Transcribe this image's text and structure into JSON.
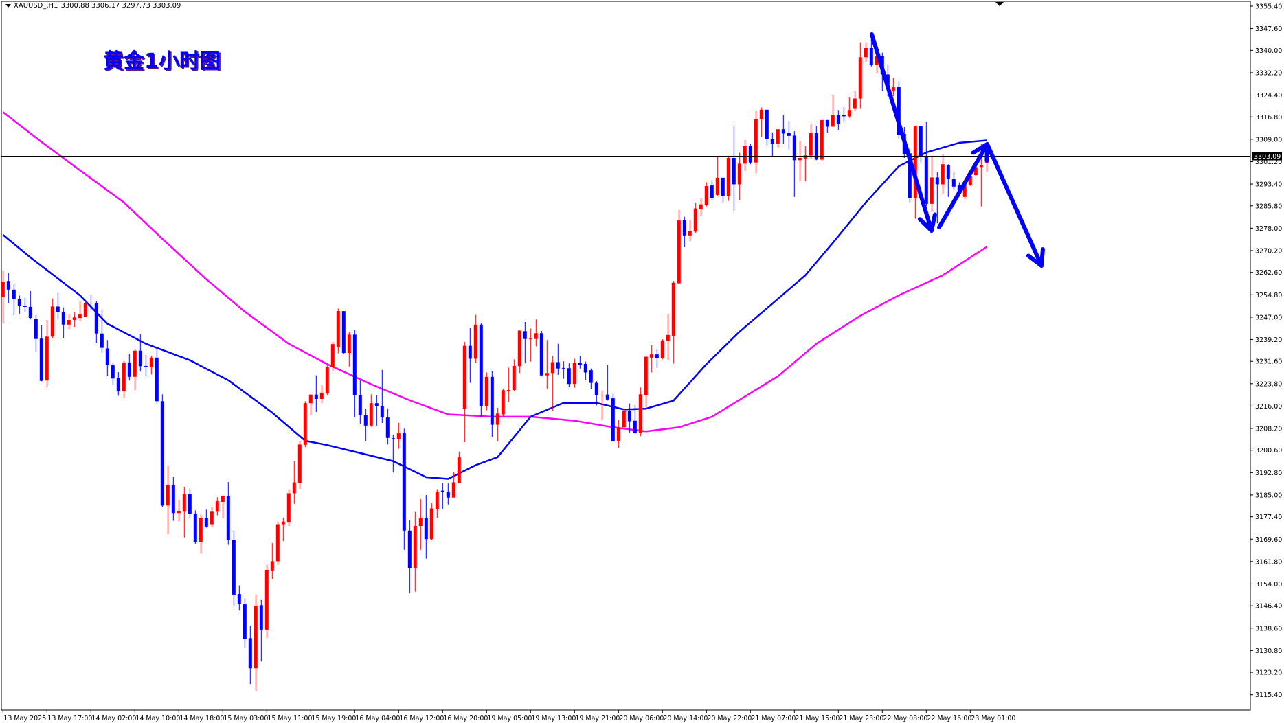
{
  "header": {
    "symbol": "XAUUSD_,H1",
    "ohlc": "3300.88 3306.17 3297.73 3303.09"
  },
  "annotation_title": "黄金1小时图",
  "colors": {
    "bull": "#ff0000",
    "bear": "#0000ff",
    "ma_fast": "#0000ff",
    "ma_slow": "#ff00ff",
    "arrows": "#0000ff"
  },
  "chart_data": {
    "type": "candlestick",
    "title": "黄金1小时图",
    "symbol": "XAUUSD_",
    "timeframe": "H1",
    "current_price": "3303.09",
    "ylim": [
      3115.4,
      3355.4
    ],
    "price_ticks": [
      "3355.40",
      "3347.60",
      "3340.00",
      "3332.20",
      "3324.40",
      "3316.80",
      "3309.00",
      "3301.20",
      "3293.40",
      "3285.80",
      "3278.00",
      "3270.20",
      "3262.60",
      "3254.80",
      "3247.00",
      "3239.20",
      "3231.60",
      "3223.80",
      "3216.00",
      "3208.20",
      "3200.60",
      "3192.80",
      "3185.00",
      "3177.40",
      "3169.60",
      "3161.80",
      "3154.00",
      "3146.40",
      "3138.60",
      "3130.80",
      "3123.20",
      "3115.40"
    ],
    "time_labels": [
      "13 May 2025",
      "13 May 17:00",
      "14 May 02:00",
      "14 May 10:00",
      "14 May 18:00",
      "15 May 03:00",
      "15 May 11:00",
      "15 May 19:00",
      "16 May 04:00",
      "16 May 12:00",
      "16 May 20:00",
      "19 May 05:00",
      "19 May 13:00",
      "19 May 21:00",
      "20 May 06:00",
      "20 May 14:00",
      "20 May 22:00",
      "21 May 07:00",
      "21 May 15:00",
      "21 May 23:00",
      "22 May 08:00",
      "22 May 16:00",
      "23 May 01:00"
    ],
    "bars_per_time_label": 8,
    "candles_ohlc": [
      [
        3254.0,
        3263.2,
        3244.8,
        3259.3
      ],
      [
        3259.6,
        3262.4,
        3251.9,
        3256.6
      ],
      [
        3256.6,
        3258.7,
        3247.7,
        3253.2
      ],
      [
        3253.3,
        3254.5,
        3248.2,
        3250.8
      ],
      [
        3250.8,
        3253.8,
        3248.7,
        3250.6
      ],
      [
        3250.6,
        3256.1,
        3246.2,
        3246.7
      ],
      [
        3246.5,
        3247.7,
        3234.9,
        3239.4
      ],
      [
        3239.5,
        3244.3,
        3224.6,
        3224.8
      ],
      [
        3224.9,
        3246.0,
        3222.8,
        3240.2
      ],
      [
        3240.2,
        3253.5,
        3239.5,
        3250.7
      ],
      [
        3250.7,
        3255.4,
        3246.2,
        3248.7
      ],
      [
        3248.7,
        3250.4,
        3239.6,
        3244.4
      ],
      [
        3244.4,
        3248.2,
        3242.8,
        3246.0
      ],
      [
        3246.0,
        3248.7,
        3243.6,
        3246.9
      ],
      [
        3246.7,
        3252.5,
        3245.6,
        3247.9
      ],
      [
        3247.2,
        3252.5,
        3247.0,
        3252.0
      ],
      [
        3252.0,
        3254.7,
        3249.6,
        3251.9
      ],
      [
        3252.0,
        3252.5,
        3238.0,
        3241.3
      ],
      [
        3241.3,
        3249.6,
        3234.6,
        3236.3
      ],
      [
        3236.1,
        3239.0,
        3226.6,
        3230.2
      ],
      [
        3230.2,
        3231.2,
        3223.5,
        3225.6
      ],
      [
        3225.8,
        3227.8,
        3219.6,
        3221.1
      ],
      [
        3221.1,
        3231.7,
        3218.9,
        3231.2
      ],
      [
        3231.2,
        3234.3,
        3224.9,
        3226.2
      ],
      [
        3226.2,
        3235.9,
        3221.5,
        3235.3
      ],
      [
        3235.3,
        3241.1,
        3228.0,
        3229.9
      ],
      [
        3230.0,
        3233.8,
        3226.4,
        3229.8
      ],
      [
        3229.7,
        3233.6,
        3227.0,
        3232.9
      ],
      [
        3232.9,
        3236.3,
        3216.9,
        3217.7
      ],
      [
        3217.7,
        3220.1,
        3180.8,
        3181.3
      ],
      [
        3181.3,
        3195.1,
        3171.3,
        3188.6
      ],
      [
        3188.6,
        3191.3,
        3176.0,
        3178.7
      ],
      [
        3178.7,
        3183.4,
        3175.8,
        3179.5
      ],
      [
        3179.4,
        3187.8,
        3170.2,
        3185.2
      ],
      [
        3185.2,
        3187.3,
        3177.1,
        3178.4
      ],
      [
        3178.4,
        3179.6,
        3168.0,
        3168.5
      ],
      [
        3168.5,
        3178.2,
        3164.5,
        3177.0
      ],
      [
        3177.0,
        3179.9,
        3173.6,
        3174.0
      ],
      [
        3174.8,
        3180.8,
        3174.0,
        3179.4
      ],
      [
        3179.4,
        3184.2,
        3177.9,
        3182.8
      ],
      [
        3182.6,
        3184.9,
        3176.9,
        3184.7
      ],
      [
        3184.7,
        3189.5,
        3167.6,
        3169.2
      ],
      [
        3169.2,
        3172.3,
        3146.2,
        3150.3
      ],
      [
        3150.5,
        3153.5,
        3144.7,
        3147.1
      ],
      [
        3146.9,
        3149.0,
        3131.7,
        3134.8
      ],
      [
        3135.1,
        3139.4,
        3119.1,
        3124.6
      ],
      [
        3124.6,
        3150.3,
        3116.6,
        3146.4
      ],
      [
        3146.6,
        3148.4,
        3127.0,
        3138.1
      ],
      [
        3138.1,
        3160.7,
        3135.2,
        3158.9
      ],
      [
        3158.7,
        3168.2,
        3155.7,
        3161.9
      ],
      [
        3161.9,
        3175.7,
        3160.7,
        3174.8
      ],
      [
        3174.8,
        3177.1,
        3168.9,
        3175.7
      ],
      [
        3175.6,
        3187.0,
        3174.2,
        3185.6
      ],
      [
        3185.6,
        3196.7,
        3181.9,
        3189.4
      ],
      [
        3189.1,
        3204.0,
        3187.1,
        3202.6
      ],
      [
        3202.5,
        3217.7,
        3201.7,
        3217.0
      ],
      [
        3217.0,
        3220.1,
        3212.9,
        3220.0
      ],
      [
        3220.0,
        3226.7,
        3213.9,
        3218.5
      ],
      [
        3218.5,
        3223.4,
        3217.0,
        3220.7
      ],
      [
        3220.6,
        3230.2,
        3219.7,
        3229.7
      ],
      [
        3229.7,
        3238.4,
        3228.2,
        3237.6
      ],
      [
        3236.4,
        3250.0,
        3234.4,
        3249.1
      ],
      [
        3249.1,
        3249.1,
        3234.1,
        3234.5
      ],
      [
        3234.5,
        3241.8,
        3229.8,
        3240.9
      ],
      [
        3240.9,
        3242.5,
        3212.0,
        3219.7
      ],
      [
        3219.7,
        3225.0,
        3209.9,
        3213.0
      ],
      [
        3213.0,
        3214.9,
        3203.7,
        3209.2
      ],
      [
        3209.2,
        3220.1,
        3208.8,
        3217.0
      ],
      [
        3217.0,
        3219.7,
        3209.2,
        3216.1
      ],
      [
        3216.1,
        3228.6,
        3210.1,
        3212.0
      ],
      [
        3212.0,
        3215.2,
        3202.6,
        3204.9
      ],
      [
        3204.8,
        3206.1,
        3192.8,
        3204.6
      ],
      [
        3204.5,
        3210.2,
        3201.1,
        3206.5
      ],
      [
        3206.5,
        3208.1,
        3165.9,
        3172.6
      ],
      [
        3172.6,
        3176.2,
        3150.7,
        3159.6
      ],
      [
        3159.6,
        3179.3,
        3151.3,
        3174.2
      ],
      [
        3174.2,
        3183.5,
        3165.9,
        3177.1
      ],
      [
        3177.1,
        3185.0,
        3162.8,
        3169.6
      ],
      [
        3169.6,
        3182.1,
        3169.4,
        3180.3
      ],
      [
        3180.1,
        3187.0,
        3177.1,
        3186.2
      ],
      [
        3186.5,
        3189.1,
        3180.1,
        3186.0
      ],
      [
        3186.2,
        3189.0,
        3181.7,
        3184.1
      ],
      [
        3184.1,
        3192.9,
        3184.1,
        3189.4
      ],
      [
        3189.2,
        3200.1,
        3189.0,
        3198.1
      ],
      [
        3215.1,
        3238.4,
        3203.4,
        3237.0
      ],
      [
        3237.0,
        3243.2,
        3224.1,
        3232.5
      ],
      [
        3232.5,
        3247.8,
        3231.1,
        3244.4
      ],
      [
        3244.4,
        3244.8,
        3212.0,
        3215.9
      ],
      [
        3215.9,
        3227.7,
        3214.5,
        3226.2
      ],
      [
        3226.2,
        3228.2,
        3205.1,
        3209.5
      ],
      [
        3209.5,
        3215.4,
        3203.7,
        3213.4
      ],
      [
        3213.1,
        3222.0,
        3212.4,
        3221.5
      ],
      [
        3221.4,
        3229.4,
        3217.4,
        3221.6
      ],
      [
        3221.6,
        3232.3,
        3221.3,
        3230.0
      ],
      [
        3229.9,
        3242.4,
        3227.5,
        3242.3
      ],
      [
        3242.1,
        3245.3,
        3230.9,
        3239.4
      ],
      [
        3239.4,
        3243.0,
        3231.5,
        3239.5
      ],
      [
        3239.4,
        3246.2,
        3236.8,
        3241.4
      ],
      [
        3241.4,
        3242.2,
        3226.3,
        3226.7
      ],
      [
        3226.7,
        3239.0,
        3222.1,
        3227.5
      ],
      [
        3227.5,
        3233.5,
        3214.3,
        3231.3
      ],
      [
        3231.3,
        3237.7,
        3226.9,
        3229.1
      ],
      [
        3229.3,
        3231.6,
        3225.5,
        3229.1
      ],
      [
        3229.2,
        3230.9,
        3222.8,
        3223.7
      ],
      [
        3223.7,
        3232.5,
        3222.4,
        3231.1
      ],
      [
        3231.1,
        3233.5,
        3229.1,
        3230.3
      ],
      [
        3230.7,
        3231.5,
        3225.2,
        3227.7
      ],
      [
        3228.5,
        3229.1,
        3221.9,
        3224.1
      ],
      [
        3224.1,
        3224.7,
        3216.2,
        3219.7
      ],
      [
        3219.9,
        3221.5,
        3211.3,
        3219.9
      ],
      [
        3220.0,
        3230.4,
        3217.9,
        3218.3
      ],
      [
        3218.7,
        3220.3,
        3203.5,
        3203.9
      ],
      [
        3203.9,
        3211.1,
        3201.4,
        3208.6
      ],
      [
        3208.6,
        3215.1,
        3208.2,
        3214.3
      ],
      [
        3214.3,
        3216.9,
        3206.7,
        3210.7
      ],
      [
        3210.9,
        3216.3,
        3206.3,
        3206.7
      ],
      [
        3206.7,
        3222.5,
        3205.5,
        3220.1
      ],
      [
        3219.7,
        3233.5,
        3215.5,
        3233.2
      ],
      [
        3232.9,
        3237.2,
        3227.7,
        3234.0
      ],
      [
        3234.0,
        3235.9,
        3229.3,
        3232.7
      ],
      [
        3232.7,
        3239.3,
        3232.3,
        3238.9
      ],
      [
        3238.7,
        3248.2,
        3231.9,
        3240.8
      ],
      [
        3240.5,
        3259.6,
        3230.8,
        3259.0
      ],
      [
        3258.8,
        3284.4,
        3258.6,
        3280.7
      ],
      [
        3280.9,
        3282.0,
        3271.4,
        3275.5
      ],
      [
        3275.5,
        3280.9,
        3273.5,
        3277.1
      ],
      [
        3276.8,
        3286.8,
        3276.4,
        3284.9
      ],
      [
        3284.7,
        3288.4,
        3282.4,
        3286.3
      ],
      [
        3286.0,
        3294.0,
        3285.6,
        3292.7
      ],
      [
        3292.9,
        3294.7,
        3287.6,
        3288.4
      ],
      [
        3289.6,
        3303.1,
        3289.1,
        3295.6
      ],
      [
        3295.6,
        3295.6,
        3286.9,
        3289.1
      ],
      [
        3289.1,
        3303.1,
        3287.5,
        3302.5
      ],
      [
        3302.5,
        3313.8,
        3283.9,
        3293.3
      ],
      [
        3293.3,
        3304.3,
        3287.9,
        3300.5
      ],
      [
        3300.5,
        3308.7,
        3298.0,
        3306.6
      ],
      [
        3306.6,
        3307.3,
        3300.3,
        3300.9
      ],
      [
        3300.9,
        3319.0,
        3297.1,
        3315.9
      ],
      [
        3315.9,
        3320.1,
        3309.7,
        3319.3
      ],
      [
        3319.3,
        3319.3,
        3306.6,
        3309.0
      ],
      [
        3309.2,
        3311.4,
        3302.7,
        3307.3
      ],
      [
        3307.3,
        3312.5,
        3306.1,
        3312.5
      ],
      [
        3312.5,
        3317.6,
        3307.5,
        3311.0
      ],
      [
        3311.3,
        3315.4,
        3305.5,
        3310.2
      ],
      [
        3310.3,
        3311.8,
        3288.9,
        3301.7
      ],
      [
        3301.7,
        3308.5,
        3294.3,
        3302.5
      ],
      [
        3302.3,
        3306.6,
        3294.3,
        3303.4
      ],
      [
        3303.3,
        3314.5,
        3302.3,
        3311.1
      ],
      [
        3311.1,
        3313.7,
        3301.7,
        3301.9
      ],
      [
        3301.9,
        3315.7,
        3301.4,
        3315.7
      ],
      [
        3315.7,
        3315.7,
        3311.3,
        3313.4
      ],
      [
        3313.4,
        3324.3,
        3313.4,
        3317.5
      ],
      [
        3317.5,
        3319.2,
        3312.3,
        3314.3
      ],
      [
        3317.4,
        3320.2,
        3314.9,
        3317.0
      ],
      [
        3317.0,
        3323.6,
        3316.5,
        3319.2
      ],
      [
        3319.6,
        3325.8,
        3318.7,
        3323.2
      ],
      [
        3323.2,
        3342.8,
        3319.6,
        3337.6
      ],
      [
        3337.6,
        3342.8,
        3336.0,
        3340.8
      ],
      [
        3340.8,
        3344.8,
        3334.4,
        3335.0
      ],
      [
        3334.8,
        3340.0,
        3332.0,
        3338.0
      ],
      [
        3338.0,
        3339.2,
        3325.8,
        3331.6
      ],
      [
        3331.6,
        3334.8,
        3324.0,
        3327.0
      ],
      [
        3326.0,
        3330.4,
        3324.0,
        3327.4
      ],
      [
        3327.4,
        3329.2,
        3309.3,
        3310.5
      ],
      [
        3310.9,
        3313.3,
        3302.5,
        3303.7
      ],
      [
        3304.1,
        3305.7,
        3286.9,
        3288.5
      ],
      [
        3288.5,
        3313.7,
        3281.3,
        3313.5
      ],
      [
        3313.5,
        3313.7,
        3300.9,
        3303.0
      ],
      [
        3303.0,
        3315.0,
        3285.7,
        3286.5
      ],
      [
        3286.5,
        3303.3,
        3283.7,
        3295.7
      ],
      [
        3295.7,
        3297.7,
        3279.7,
        3293.3
      ],
      [
        3293.3,
        3303.9,
        3290.0,
        3300.3
      ],
      [
        3300.1,
        3300.3,
        3288.9,
        3295.3
      ],
      [
        3295.3,
        3297.7,
        3291.2,
        3292.5
      ],
      [
        3292.9,
        3294.0,
        3289.0,
        3290.5
      ],
      [
        3288.9,
        3294.1,
        3288.1,
        3292.9
      ],
      [
        3292.9,
        3297.7,
        3292.8,
        3296.1
      ],
      [
        3296.5,
        3300.1,
        3296.1,
        3299.3
      ],
      [
        3299.3,
        3307.3,
        3285.6,
        3300.1
      ],
      [
        3300.88,
        3306.17,
        3297.73,
        3303.09
      ]
    ],
    "ma_fast": {
      "name": "Moving average (fast)",
      "points": [
        [
          0,
          3275.7
        ],
        [
          5,
          3267.8
        ],
        [
          14,
          3254.6
        ],
        [
          19,
          3244.7
        ],
        [
          26,
          3237.7
        ],
        [
          34,
          3232.0
        ],
        [
          41,
          3225.0
        ],
        [
          49,
          3213.7
        ],
        [
          55,
          3203.9
        ],
        [
          59,
          3202.4
        ],
        [
          65,
          3199.6
        ],
        [
          71,
          3196.8
        ],
        [
          77,
          3191.2
        ],
        [
          81,
          3190.6
        ],
        [
          86,
          3195.4
        ],
        [
          90,
          3198.2
        ],
        [
          96,
          3212.3
        ],
        [
          102,
          3217.1
        ],
        [
          108,
          3217.1
        ],
        [
          113,
          3214.8
        ],
        [
          117,
          3215.1
        ],
        [
          122,
          3217.9
        ],
        [
          128,
          3230.6
        ],
        [
          134,
          3241.9
        ],
        [
          140,
          3251.7
        ],
        [
          146,
          3261.6
        ],
        [
          151,
          3272.9
        ],
        [
          157,
          3287.0
        ],
        [
          163,
          3299.6
        ],
        [
          168,
          3304.4
        ],
        [
          174,
          3307.8
        ],
        [
          179,
          3308.6
        ]
      ]
    },
    "ma_slow": {
      "name": "Moving average (slow)",
      "points": [
        [
          0,
          3318.5
        ],
        [
          7,
          3308.1
        ],
        [
          14,
          3298.2
        ],
        [
          22,
          3287.0
        ],
        [
          29,
          3274.3
        ],
        [
          37,
          3260.2
        ],
        [
          44,
          3248.9
        ],
        [
          52,
          3237.7
        ],
        [
          59,
          3230.6
        ],
        [
          67,
          3223.6
        ],
        [
          74,
          3218.0
        ],
        [
          81,
          3213.1
        ],
        [
          89,
          3212.3
        ],
        [
          96,
          3212.3
        ],
        [
          104,
          3210.9
        ],
        [
          111,
          3208.6
        ],
        [
          117,
          3207.2
        ],
        [
          123,
          3208.6
        ],
        [
          129,
          3212.3
        ],
        [
          135,
          3219.3
        ],
        [
          141,
          3226.4
        ],
        [
          148,
          3237.7
        ],
        [
          156,
          3247.5
        ],
        [
          163,
          3254.6
        ],
        [
          171,
          3261.6
        ],
        [
          179,
          3271.5
        ]
      ]
    },
    "grid": false
  }
}
